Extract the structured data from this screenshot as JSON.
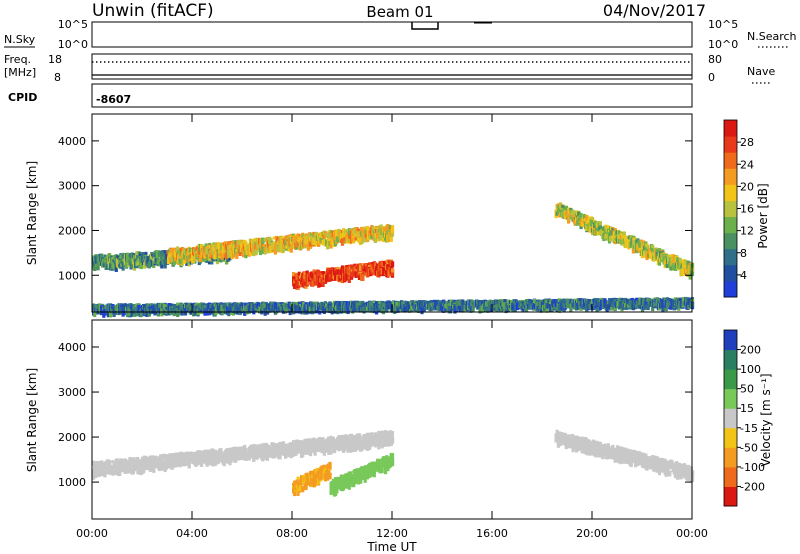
{
  "header": {
    "title_left": "Unwin (fitACF)",
    "title_center": "Beam 01",
    "title_right": "04/Nov/2017"
  },
  "top_panels": {
    "nsky_label": "N.Sky",
    "nsky_ticks": [
      "10^5",
      "10^0"
    ],
    "nsearch_label": "N.Search",
    "nsearch_ticks": [
      "10^5",
      "10^0"
    ],
    "freq_label_line1": "Freq.",
    "freq_label_line2": "[MHz]",
    "freq_ticks": [
      "18",
      "8"
    ],
    "nave_label": "Nave",
    "nave_ticks": [
      "80",
      "0"
    ],
    "cpid_label": "CPID",
    "cpid_value": "-8607"
  },
  "chart_data": [
    {
      "type": "heatmap",
      "ylabel": "Slant Range [km]",
      "xlabel": "Time UT",
      "x_ticks": [
        "00:00",
        "04:00",
        "08:00",
        "12:00",
        "16:00",
        "20:00",
        "00:00"
      ],
      "xlim_hours": [
        0,
        24
      ],
      "y_ticks": [
        1000,
        2000,
        3000,
        4000
      ],
      "ylim": [
        180,
        4600
      ],
      "colorbar": {
        "label": "Power [dB]",
        "ticks": [
          "4",
          "8",
          "12",
          "16",
          "20",
          "24",
          "28"
        ],
        "colors": [
          "#1f3fd8",
          "#224ea0",
          "#2f6f8a",
          "#4a9060",
          "#6bb04a",
          "#b8c23e",
          "#f2c418",
          "#f49b22",
          "#f06a1c",
          "#e83a1a",
          "#dc1812"
        ]
      },
      "features": [
        {
          "name": "early-band",
          "t_start": 0.0,
          "t_end": 5.5,
          "range_start": 1300,
          "range_end": 1500,
          "level": 3
        },
        {
          "name": "rising-band",
          "t_start": 3.0,
          "t_end": 12.0,
          "range_start": 1450,
          "range_end": 2000,
          "level": 6
        },
        {
          "name": "strong-echo",
          "t_start": 8.0,
          "t_end": 12.0,
          "range_start": 900,
          "range_end": 1200,
          "level": 9
        },
        {
          "name": "dawn-echoes",
          "t_start": 18.5,
          "t_end": 24.0,
          "range_start": 2500,
          "range_end": 1100,
          "level": 5
        },
        {
          "name": "ground-scatter-floor",
          "t_start": 0.0,
          "t_end": 24.0,
          "range_start": 250,
          "range_end": 400,
          "level": 2
        }
      ]
    },
    {
      "type": "heatmap",
      "ylabel": "Slant Range [km]",
      "xlabel": "Time UT",
      "x_ticks": [
        "00:00",
        "04:00",
        "08:00",
        "12:00",
        "16:00",
        "20:00",
        "00:00"
      ],
      "xlim_hours": [
        0,
        24
      ],
      "y_ticks": [
        1000,
        2000,
        3000,
        4000
      ],
      "ylim": [
        180,
        4600
      ],
      "colorbar": {
        "label": "Velocity [m s⁻¹]",
        "ticks": [
          "200",
          "100",
          "50",
          "15",
          "-15",
          "-50",
          "-100",
          "-200"
        ],
        "colors": [
          "#1f3fbd",
          "#2a7f62",
          "#3a9a4a",
          "#78c85a",
          "#c8c8c8",
          "#f2c418",
          "#f49b22",
          "#f06a1c",
          "#dc1812"
        ]
      },
      "features": [
        {
          "name": "gray-band",
          "t_start": 0.0,
          "t_end": 12.0,
          "range_start": 1300,
          "range_end": 2000,
          "velocity": 0
        },
        {
          "name": "orange-echo",
          "t_start": 8.0,
          "t_end": 9.5,
          "range_start": 900,
          "range_end": 1300,
          "velocity": -60
        },
        {
          "name": "green-echo",
          "t_start": 9.5,
          "t_end": 12.0,
          "range_start": 900,
          "range_end": 1500,
          "velocity": 30
        },
        {
          "name": "dawn-gray-band",
          "t_start": 18.5,
          "t_end": 24.0,
          "range_start": 2000,
          "range_end": 1200,
          "velocity": 0
        }
      ]
    }
  ]
}
